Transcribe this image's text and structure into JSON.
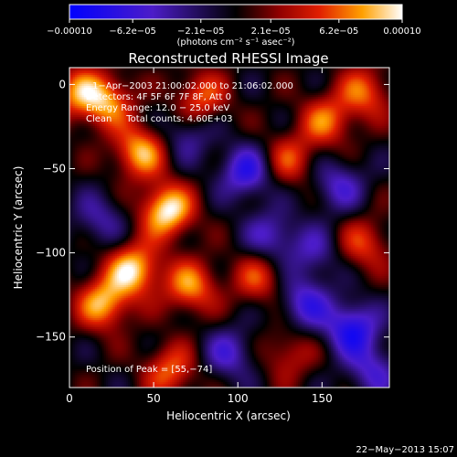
{
  "colorbar": {
    "tick_labels": [
      "−0.00010",
      "−6.2e−05",
      "−2.1e−05",
      "2.1e−05",
      "6.2e−05",
      "0.00010"
    ],
    "tick_values": [
      -0.0001,
      -6.2e-05,
      -2.1e-05,
      2.1e-05,
      6.2e-05,
      0.0001
    ],
    "range": [
      -0.0001,
      0.0001
    ],
    "unit_label": "(photons cm⁻² s⁻¹ asec⁻²)"
  },
  "chart_data": {
    "type": "heatmap",
    "title": "Reconstructed RHESSI Image",
    "xlabel": "Heliocentric X (arcsec)",
    "ylabel": "Heliocentric Y (arcsec)",
    "xlim": [
      0,
      190
    ],
    "ylim": [
      -180,
      10
    ],
    "x_ticks": [
      0,
      50,
      100,
      150
    ],
    "x_tick_labels": [
      "0",
      "50",
      "100",
      "150"
    ],
    "y_ticks": [
      0,
      -50,
      -100,
      -150
    ],
    "y_tick_labels": [
      "0",
      "−50",
      "−100",
      "−150"
    ],
    "info_lines": [
      "1−Apr−2003 21:00:02.000 to 21:06:02.000",
      "Detectors: 4F 5F 6F 7F 8F, Att 0",
      "Energy Range: 12.0 − 25.0 keV",
      "Clean     Total counts: 4.60E+03"
    ],
    "peak_label": "Position of Peak = [55,−74]",
    "peak_position": [
      55,
      -74
    ],
    "hotspots": [
      {
        "x": 58,
        "y": -75,
        "value": 0.0001
      },
      {
        "x": 42,
        "y": -40,
        "value": 8e-05
      },
      {
        "x": 38,
        "y": -110,
        "value": 9e-05
      },
      {
        "x": 20,
        "y": -130,
        "value": 8e-05
      },
      {
        "x": 72,
        "y": -120,
        "value": 7e-05
      },
      {
        "x": 22,
        "y": -10,
        "value": 7e-05
      },
      {
        "x": 5,
        "y": -5,
        "value": 6e-05
      },
      {
        "x": 78,
        "y": -8,
        "value": 6e-05
      },
      {
        "x": 152,
        "y": -22,
        "value": 6e-05
      },
      {
        "x": 175,
        "y": -5,
        "value": 6e-05
      },
      {
        "x": 130,
        "y": -45,
        "value": 5e-05
      },
      {
        "x": 112,
        "y": -115,
        "value": 5e-05
      },
      {
        "x": 175,
        "y": -95,
        "value": 5e-05
      },
      {
        "x": 60,
        "y": -170,
        "value": 6e-05
      },
      {
        "x": 130,
        "y": -160,
        "value": 4e-05
      },
      {
        "x": 105,
        "y": -52,
        "value": -7e-05
      },
      {
        "x": 168,
        "y": -145,
        "value": -8e-05
      },
      {
        "x": 140,
        "y": -130,
        "value": -6e-05
      },
      {
        "x": 120,
        "y": -90,
        "value": -5e-05
      },
      {
        "x": 160,
        "y": -60,
        "value": -5e-05
      },
      {
        "x": 95,
        "y": -160,
        "value": -5e-05
      },
      {
        "x": 18,
        "y": -80,
        "value": -4e-05
      },
      {
        "x": 70,
        "y": -30,
        "value": -4e-05
      },
      {
        "x": 180,
        "y": -170,
        "value": -5e-05
      },
      {
        "x": 145,
        "y": -100,
        "value": -4e-05
      }
    ]
  },
  "footer": {
    "date": "22−May−2013 15:07"
  }
}
